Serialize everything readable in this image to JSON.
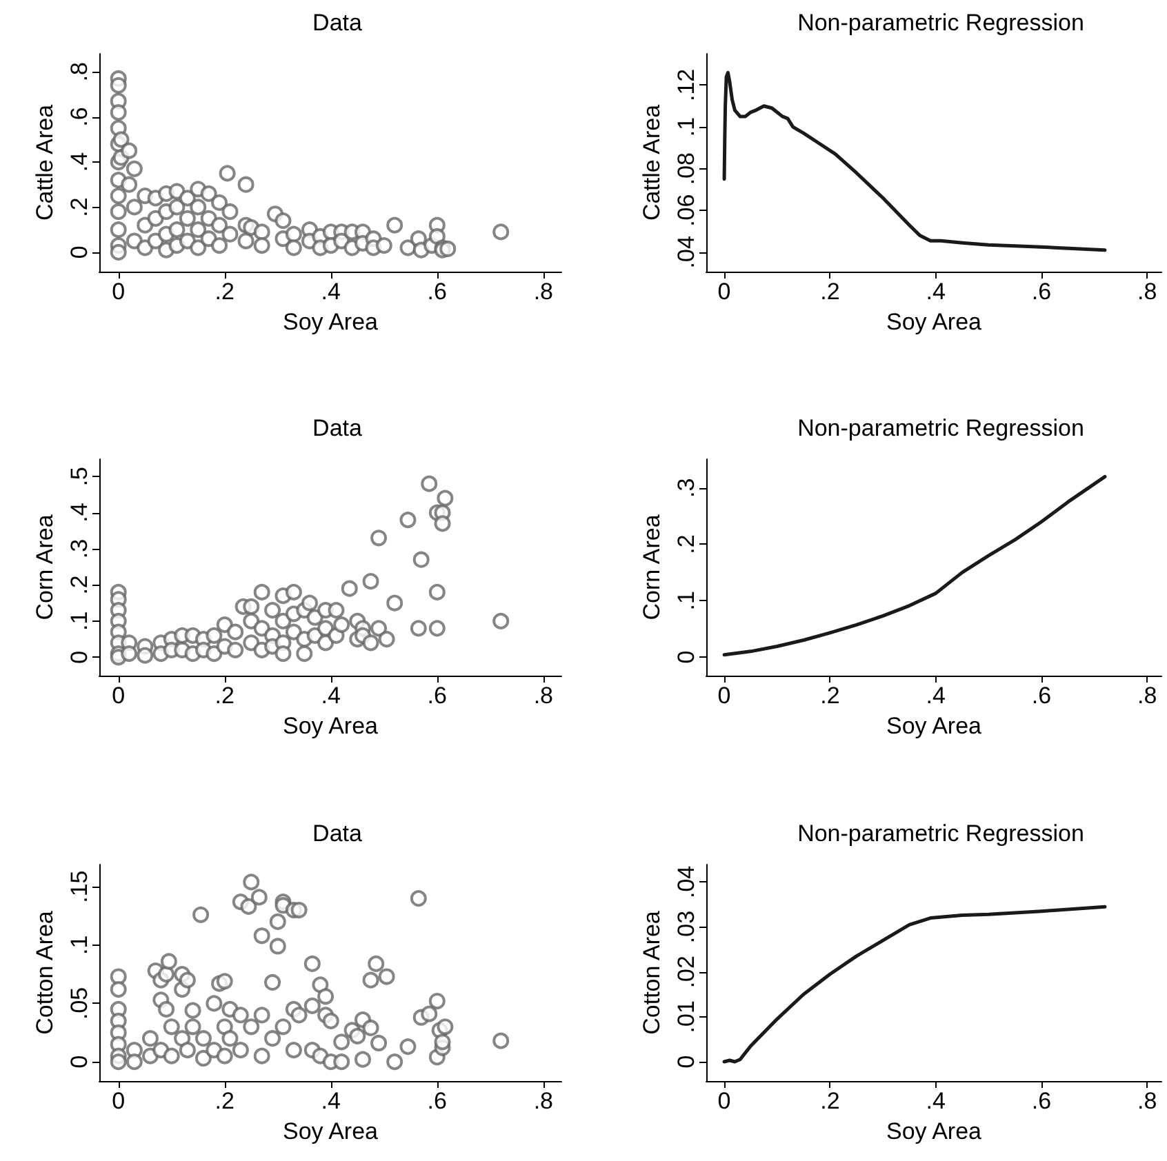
{
  "chart_data": [
    {
      "type": "scatter",
      "title": "Data",
      "xlabel": "Soy Area",
      "ylabel": "Cattle Area",
      "marker": "circle",
      "xlim": [
        -0.036,
        0.834
      ],
      "ylim": [
        -0.086,
        0.88
      ],
      "xticks": [
        {
          "value": 0,
          "label": "0"
        },
        {
          "value": 0.2,
          "label": ".2"
        },
        {
          "value": 0.4,
          "label": ".4"
        },
        {
          "value": 0.6,
          "label": ".6"
        },
        {
          "value": 0.8,
          "label": ".8"
        }
      ],
      "yticks": [
        {
          "value": 0,
          "label": "0"
        },
        {
          "value": 0.2,
          "label": ".2"
        },
        {
          "value": 0.4,
          "label": ".4"
        },
        {
          "value": 0.6,
          "label": ".6"
        },
        {
          "value": 0.8,
          "label": ".8"
        }
      ],
      "series": [
        {
          "color": "#666666",
          "x": [
            0,
            0,
            0,
            0,
            0,
            0,
            0,
            0,
            0,
            0,
            0,
            0,
            0,
            0.005,
            0.005,
            0.02,
            0.02,
            0.03,
            0.03,
            0.03,
            0.05,
            0.05,
            0.05,
            0.07,
            0.07,
            0.07,
            0.09,
            0.09,
            0.09,
            0.09,
            0.11,
            0.11,
            0.11,
            0.11,
            0.13,
            0.13,
            0.13,
            0.15,
            0.15,
            0.15,
            0.15,
            0.17,
            0.17,
            0.17,
            0.19,
            0.19,
            0.19,
            0.205,
            0.21,
            0.21,
            0.24,
            0.24,
            0.24,
            0.25,
            0.27,
            0.27,
            0.295,
            0.31,
            0.31,
            0.33,
            0.33,
            0.36,
            0.36,
            0.38,
            0.38,
            0.4,
            0.4,
            0.42,
            0.42,
            0.44,
            0.44,
            0.46,
            0.46,
            0.48,
            0.48,
            0.5,
            0.52,
            0.545,
            0.565,
            0.57,
            0.59,
            0.6,
            0.6,
            0.61,
            0.61,
            0.62,
            0.72
          ],
          "values": [
            0.77,
            0.74,
            0.67,
            0.62,
            0.55,
            0.48,
            0.4,
            0.32,
            0.25,
            0.18,
            0.1,
            0.03,
            0,
            0.5,
            0.42,
            0.45,
            0.3,
            0.37,
            0.2,
            0.05,
            0.25,
            0.12,
            0.02,
            0.24,
            0.15,
            0.05,
            0.26,
            0.18,
            0.08,
            0.01,
            0.27,
            0.2,
            0.1,
            0.03,
            0.24,
            0.15,
            0.05,
            0.28,
            0.2,
            0.1,
            0.02,
            0.26,
            0.15,
            0.06,
            0.22,
            0.12,
            0.03,
            0.35,
            0.18,
            0.08,
            0.3,
            0.12,
            0.05,
            0.11,
            0.09,
            0.03,
            0.17,
            0.14,
            0.06,
            0.08,
            0.02,
            0.1,
            0.05,
            0.07,
            0.02,
            0.09,
            0.03,
            0.09,
            0.05,
            0.09,
            0.02,
            0.09,
            0.04,
            0.06,
            0.02,
            0.03,
            0.12,
            0.02,
            0.06,
            0.01,
            0.03,
            0.12,
            0.07,
            0.02,
            0.01,
            0.015,
            0.09
          ]
        }
      ]
    },
    {
      "type": "line",
      "title": "Non-parametric Regression",
      "xlabel": "Soy Area",
      "ylabel": "Cattle Area",
      "marker": "none",
      "xlim": [
        -0.034,
        0.827
      ],
      "ylim": [
        0.0307,
        0.135
      ],
      "xticks": [
        {
          "value": 0,
          "label": "0"
        },
        {
          "value": 0.2,
          "label": ".2"
        },
        {
          "value": 0.4,
          "label": ".4"
        },
        {
          "value": 0.6,
          "label": ".6"
        },
        {
          "value": 0.8,
          "label": ".8"
        }
      ],
      "yticks": [
        {
          "value": 0.04,
          "label": ".04"
        },
        {
          "value": 0.06,
          "label": ".06"
        },
        {
          "value": 0.08,
          "label": ".08"
        },
        {
          "value": 0.1,
          "label": ".1"
        },
        {
          "value": 0.12,
          "label": ".12"
        }
      ],
      "series": [
        {
          "color": "#1a1a1a",
          "x": [
            0,
            0.001,
            0.002,
            0.004,
            0.007,
            0.01,
            0.015,
            0.02,
            0.03,
            0.04,
            0.05,
            0.06,
            0.075,
            0.09,
            0.1,
            0.11,
            0.12,
            0.13,
            0.15,
            0.18,
            0.21,
            0.25,
            0.3,
            0.35,
            0.37,
            0.39,
            0.41,
            0.45,
            0.5,
            0.6,
            0.72
          ],
          "values": [
            0.075,
            0.095,
            0.11,
            0.124,
            0.126,
            0.122,
            0.113,
            0.108,
            0.105,
            0.105,
            0.107,
            0.108,
            0.11,
            0.109,
            0.107,
            0.105,
            0.104,
            0.1,
            0.097,
            0.092,
            0.087,
            0.078,
            0.066,
            0.053,
            0.048,
            0.0455,
            0.0455,
            0.0445,
            0.0435,
            0.0425,
            0.041
          ]
        }
      ]
    },
    {
      "type": "scatter",
      "title": "Data",
      "xlabel": "Soy Area",
      "ylabel": "Corn Area",
      "marker": "circle",
      "xlim": [
        -0.036,
        0.834
      ],
      "ylim": [
        -0.051,
        0.548
      ],
      "xticks": [
        {
          "value": 0,
          "label": "0"
        },
        {
          "value": 0.2,
          "label": ".2"
        },
        {
          "value": 0.4,
          "label": ".4"
        },
        {
          "value": 0.6,
          "label": ".6"
        },
        {
          "value": 0.8,
          "label": ".8"
        }
      ],
      "yticks": [
        {
          "value": 0,
          "label": "0"
        },
        {
          "value": 0.1,
          "label": ".1"
        },
        {
          "value": 0.2,
          "label": ".2"
        },
        {
          "value": 0.3,
          "label": ".3"
        },
        {
          "value": 0.4,
          "label": ".4"
        },
        {
          "value": 0.5,
          "label": ".5"
        }
      ],
      "series": [
        {
          "color": "#666666",
          "x": [
            0,
            0,
            0,
            0,
            0,
            0,
            0,
            0,
            0.02,
            0.02,
            0.05,
            0.05,
            0.08,
            0.08,
            0.1,
            0.1,
            0.12,
            0.12,
            0.14,
            0.14,
            0.16,
            0.16,
            0.18,
            0.18,
            0.2,
            0.2,
            0.22,
            0.22,
            0.235,
            0.25,
            0.25,
            0.25,
            0.27,
            0.27,
            0.27,
            0.29,
            0.29,
            0.29,
            0.31,
            0.31,
            0.31,
            0.31,
            0.33,
            0.33,
            0.33,
            0.35,
            0.35,
            0.35,
            0.36,
            0.37,
            0.37,
            0.39,
            0.39,
            0.39,
            0.41,
            0.41,
            0.42,
            0.435,
            0.45,
            0.45,
            0.46,
            0.46,
            0.475,
            0.475,
            0.49,
            0.49,
            0.505,
            0.52,
            0.545,
            0.565,
            0.57,
            0.585,
            0.6,
            0.6,
            0.6,
            0.61,
            0.61,
            0.615,
            0.72
          ],
          "values": [
            0.18,
            0.16,
            0.13,
            0.1,
            0.07,
            0.04,
            0.01,
            0,
            0.04,
            0.01,
            0.03,
            0.005,
            0.04,
            0.01,
            0.05,
            0.02,
            0.06,
            0.02,
            0.06,
            0.01,
            0.05,
            0.02,
            0.06,
            0.01,
            0.09,
            0.03,
            0.07,
            0.02,
            0.14,
            0.14,
            0.1,
            0.04,
            0.18,
            0.08,
            0.02,
            0.13,
            0.06,
            0.03,
            0.17,
            0.1,
            0.04,
            0.01,
            0.18,
            0.12,
            0.07,
            0.13,
            0.05,
            0.01,
            0.15,
            0.11,
            0.06,
            0.13,
            0.08,
            0.04,
            0.13,
            0.06,
            0.09,
            0.19,
            0.1,
            0.05,
            0.08,
            0.06,
            0.21,
            0.04,
            0.33,
            0.08,
            0.05,
            0.15,
            0.38,
            0.08,
            0.27,
            0.48,
            0.4,
            0.18,
            0.08,
            0.4,
            0.37,
            0.44,
            0.1
          ]
        }
      ]
    },
    {
      "type": "line",
      "title": "Non-parametric Regression",
      "xlabel": "Soy Area",
      "ylabel": "Corn Area",
      "marker": "none",
      "xlim": [
        -0.034,
        0.827
      ],
      "ylim": [
        -0.033,
        0.351
      ],
      "xticks": [
        {
          "value": 0,
          "label": "0"
        },
        {
          "value": 0.2,
          "label": ".2"
        },
        {
          "value": 0.4,
          "label": ".4"
        },
        {
          "value": 0.6,
          "label": ".6"
        },
        {
          "value": 0.8,
          "label": ".8"
        }
      ],
      "yticks": [
        {
          "value": 0,
          "label": "0"
        },
        {
          "value": 0.1,
          "label": ".1"
        },
        {
          "value": 0.2,
          "label": ".2"
        },
        {
          "value": 0.3,
          "label": ".3"
        }
      ],
      "series": [
        {
          "color": "#1a1a1a",
          "x": [
            0,
            0.05,
            0.1,
            0.15,
            0.2,
            0.25,
            0.3,
            0.35,
            0.4,
            0.45,
            0.5,
            0.55,
            0.6,
            0.65,
            0.72
          ],
          "values": [
            0.004,
            0.01,
            0.019,
            0.03,
            0.043,
            0.057,
            0.073,
            0.091,
            0.113,
            0.15,
            0.18,
            0.208,
            0.24,
            0.275,
            0.32
          ]
        }
      ]
    },
    {
      "type": "scatter",
      "title": "Data",
      "xlabel": "Soy Area",
      "ylabel": "Cotton Area",
      "marker": "circle",
      "xlim": [
        -0.036,
        0.834
      ],
      "ylim": [
        -0.0165,
        0.169
      ],
      "xticks": [
        {
          "value": 0,
          "label": "0"
        },
        {
          "value": 0.2,
          "label": ".2"
        },
        {
          "value": 0.4,
          "label": ".4"
        },
        {
          "value": 0.6,
          "label": ".6"
        },
        {
          "value": 0.8,
          "label": ".8"
        }
      ],
      "yticks": [
        {
          "value": 0,
          "label": "0"
        },
        {
          "value": 0.05,
          "label": ".05"
        },
        {
          "value": 0.1,
          "label": ".1"
        },
        {
          "value": 0.15,
          "label": ".15"
        }
      ],
      "series": [
        {
          "color": "#666666",
          "x": [
            0,
            0,
            0,
            0,
            0,
            0,
            0,
            0,
            0.03,
            0.03,
            0.06,
            0.06,
            0.07,
            0.08,
            0.08,
            0.08,
            0.09,
            0.09,
            0.095,
            0.1,
            0.1,
            0.12,
            0.12,
            0.12,
            0.13,
            0.13,
            0.14,
            0.14,
            0.155,
            0.16,
            0.16,
            0.18,
            0.18,
            0.19,
            0.2,
            0.2,
            0.2,
            0.21,
            0.21,
            0.23,
            0.23,
            0.23,
            0.245,
            0.25,
            0.25,
            0.265,
            0.27,
            0.27,
            0.27,
            0.29,
            0.29,
            0.3,
            0.3,
            0.31,
            0.31,
            0.31,
            0.33,
            0.33,
            0.33,
            0.34,
            0.34,
            0.365,
            0.365,
            0.365,
            0.38,
            0.38,
            0.39,
            0.39,
            0.4,
            0.4,
            0.42,
            0.42,
            0.44,
            0.45,
            0.46,
            0.46,
            0.475,
            0.475,
            0.485,
            0.49,
            0.505,
            0.52,
            0.545,
            0.565,
            0.57,
            0.585,
            0.6,
            0.6,
            0.605,
            0.61,
            0.61,
            0.615,
            0.72
          ],
          "values": [
            0.073,
            0.062,
            0.045,
            0.035,
            0.025,
            0.015,
            0.005,
            0,
            0.01,
            0,
            0.02,
            0.005,
            0.078,
            0.07,
            0.053,
            0.01,
            0.045,
            0.075,
            0.086,
            0.03,
            0.005,
            0.075,
            0.062,
            0.02,
            0.07,
            0.01,
            0.044,
            0.03,
            0.126,
            0.02,
            0.003,
            0.05,
            0.01,
            0.067,
            0.069,
            0.03,
            0.005,
            0.045,
            0.02,
            0.137,
            0.04,
            0.01,
            0.133,
            0.154,
            0.03,
            0.141,
            0.108,
            0.04,
            0.005,
            0.068,
            0.02,
            0.099,
            0.12,
            0.137,
            0.134,
            0.03,
            0.13,
            0.045,
            0.01,
            0.13,
            0.04,
            0.084,
            0.048,
            0.01,
            0.066,
            0.005,
            0.056,
            0.04,
            0.035,
            0,
            0.017,
            0,
            0.027,
            0.022,
            0.036,
            0.002,
            0.07,
            0.029,
            0.084,
            0.016,
            0.073,
            0,
            0.013,
            0.14,
            0.038,
            0.041,
            0.052,
            0.004,
            0.027,
            0.012,
            0.017,
            0.03,
            0.018
          ]
        }
      ]
    },
    {
      "type": "line",
      "title": "Non-parametric Regression",
      "xlabel": "Soy Area",
      "ylabel": "Cotton Area",
      "marker": "none",
      "xlim": [
        -0.034,
        0.827
      ],
      "ylim": [
        -0.0043,
        0.0439
      ],
      "xticks": [
        {
          "value": 0,
          "label": "0"
        },
        {
          "value": 0.2,
          "label": ".2"
        },
        {
          "value": 0.4,
          "label": ".4"
        },
        {
          "value": 0.6,
          "label": ".6"
        },
        {
          "value": 0.8,
          "label": ".8"
        }
      ],
      "yticks": [
        {
          "value": 0,
          "label": "0"
        },
        {
          "value": 0.01,
          "label": ".01"
        },
        {
          "value": 0.02,
          "label": ".02"
        },
        {
          "value": 0.03,
          "label": ".03"
        },
        {
          "value": 0.04,
          "label": ".04"
        }
      ],
      "series": [
        {
          "color": "#1a1a1a",
          "x": [
            0,
            0.01,
            0.02,
            0.03,
            0.05,
            0.1,
            0.15,
            0.2,
            0.25,
            0.3,
            0.35,
            0.39,
            0.45,
            0.5,
            0.6,
            0.72
          ],
          "values": [
            0,
            0.0003,
            0,
            0.0005,
            0.0035,
            0.0095,
            0.015,
            0.0195,
            0.0235,
            0.027,
            0.0305,
            0.032,
            0.0326,
            0.0328,
            0.0335,
            0.0345
          ]
        }
      ]
    }
  ]
}
